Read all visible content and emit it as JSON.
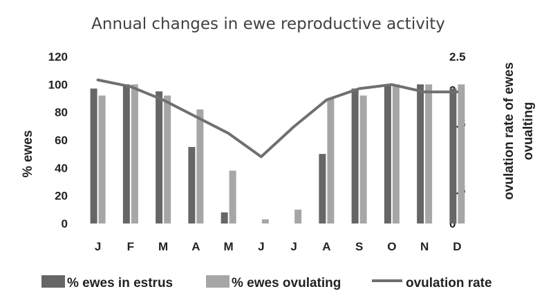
{
  "chart_data": {
    "type": "bar",
    "title": "Annual changes in ewe reproductive activity",
    "categories": [
      "J",
      "F",
      "M",
      "A",
      "M",
      "J",
      "J",
      "A",
      "S",
      "O",
      "N",
      "D"
    ],
    "series": [
      {
        "name": "% ewes in estrus",
        "type": "bar",
        "axis": "left",
        "color": "#666666",
        "values": [
          97,
          100,
          95,
          55,
          8,
          0,
          0,
          50,
          97,
          100,
          100,
          97
        ]
      },
      {
        "name": "% ewes ovulating",
        "type": "bar",
        "axis": "left",
        "color": "#a6a6a6",
        "values": [
          92,
          100,
          92,
          82,
          38,
          3,
          10,
          90,
          92,
          100,
          100,
          100
        ]
      },
      {
        "name": "ovulation rate",
        "type": "line",
        "axis": "right",
        "color": "#6f6f6f",
        "values": [
          2.15,
          2.05,
          1.85,
          1.6,
          1.35,
          1.0,
          1.45,
          1.85,
          2.02,
          2.08,
          1.97,
          1.97
        ]
      }
    ],
    "y_left": {
      "label": "% ewes",
      "ylim": [
        0,
        120
      ],
      "ticks": [
        "0",
        "20",
        "40",
        "60",
        "80",
        "100",
        "120"
      ]
    },
    "y_right": {
      "label_line1": "ovulation rate of ewes",
      "label_line2": "ovualting",
      "ylim": [
        0,
        2.5
      ],
      "ticks": [
        "0",
        "0.5",
        "1",
        "1.5",
        "2",
        "2.5"
      ]
    },
    "grid": false,
    "legend_position": "bottom"
  }
}
